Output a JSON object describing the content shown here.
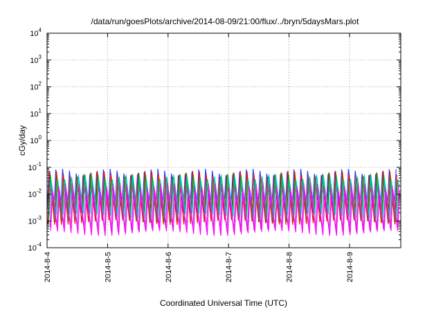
{
  "chart_data": {
    "type": "line",
    "title": "/data/run/goesPlots/archive/2014-08-09/21:00/flux/../bryn/5daysMars.plot",
    "xlabel": "Coordinated Universal Time (UTC)",
    "ylabel": "cGy/day",
    "yscale": "log",
    "ylim": [
      0.0001,
      10000
    ],
    "xlim_days": [
      0,
      5.92
    ],
    "x_tick_labels": [
      "2014-8-4",
      "2014-8-5",
      "2014-8-6",
      "2014-8-7",
      "2014-8-8",
      "2014-8-9"
    ],
    "y_tick_labels": [
      {
        "base": "10",
        "exp": "4"
      },
      {
        "base": "10",
        "exp": "3"
      },
      {
        "base": "10",
        "exp": "2"
      },
      {
        "base": "10",
        "exp": "1"
      },
      {
        "base": "10",
        "exp": "0"
      },
      {
        "base": "10",
        "exp": "-1"
      },
      {
        "base": "10",
        "exp": "-2"
      },
      {
        "base": "10",
        "exp": "-3"
      },
      {
        "base": "10",
        "exp": "-4"
      }
    ],
    "grid": true,
    "oscillation_period_hours": 2.7,
    "series": [
      {
        "color": "#1a3cff",
        "peak": 0.065,
        "trough": 0.0025
      },
      {
        "color": "#ff0000",
        "peak": 0.055,
        "trough": 0.0009
      },
      {
        "color": "#00b000",
        "peak": 0.045,
        "trough": 0.0011
      },
      {
        "color": "#00c8c8",
        "peak": 0.04,
        "trough": 0.0016
      },
      {
        "color": "#cc33cc",
        "peak": 0.02,
        "trough": 0.0005
      },
      {
        "color": "#ff00ff",
        "peak": 0.011,
        "trough": 0.00035
      }
    ]
  }
}
